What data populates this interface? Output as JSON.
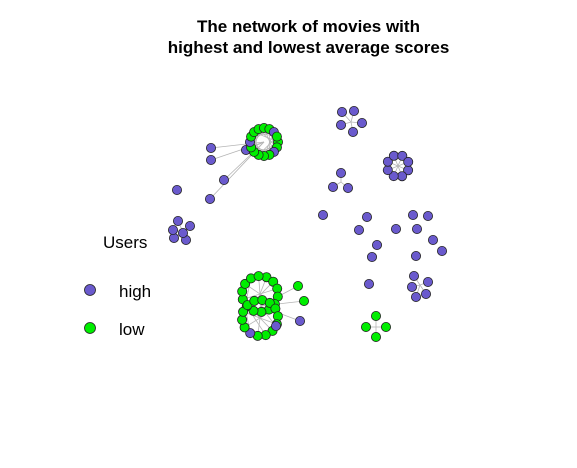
{
  "title_lines": [
    "The network of movies with",
    "highest and lowest average scores"
  ],
  "legend": {
    "title": "Users",
    "items": [
      {
        "label": "high",
        "color": "#6a5acd"
      },
      {
        "label": "low",
        "color": "#00ee00"
      }
    ]
  },
  "colors": {
    "high": "#6a5acd",
    "low": "#00ee00",
    "edge": "#b5b5b5",
    "node_stroke": "#222222"
  }
}
